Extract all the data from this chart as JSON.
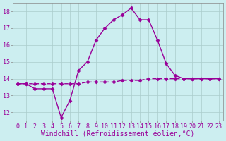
{
  "title": "",
  "xlabel": "Windchill (Refroidissement éolien,°C)",
  "ylabel": "",
  "background_color": "#cceef0",
  "grid_color": "#aacccc",
  "line_color": "#990099",
  "xlim": [
    -0.5,
    23.5
  ],
  "ylim": [
    11.5,
    18.5
  ],
  "yticks": [
    12,
    13,
    14,
    15,
    16,
    17,
    18
  ],
  "xticks": [
    0,
    1,
    2,
    3,
    4,
    5,
    6,
    7,
    8,
    9,
    10,
    11,
    12,
    13,
    14,
    15,
    16,
    17,
    18,
    19,
    20,
    21,
    22,
    23
  ],
  "x_curve1": [
    0,
    1,
    2,
    3,
    4,
    5,
    6,
    7,
    8,
    9,
    10,
    11,
    12,
    13,
    14,
    15,
    16,
    17,
    18,
    19,
    20,
    21,
    22,
    23
  ],
  "y_curve1": [
    13.7,
    13.7,
    13.4,
    13.4,
    13.4,
    11.7,
    12.7,
    14.5,
    15.0,
    16.3,
    17.0,
    17.5,
    17.8,
    18.2,
    17.5,
    17.5,
    16.3,
    14.9,
    14.2,
    14.0,
    14.0,
    14.0,
    14.0,
    14.0
  ],
  "x_curve2": [
    0,
    1,
    2,
    3,
    4,
    5,
    6,
    7,
    8,
    9,
    10,
    11,
    12,
    13,
    14,
    15,
    16,
    17,
    18,
    19,
    20,
    21,
    22,
    23
  ],
  "y_curve2": [
    13.7,
    13.7,
    13.7,
    13.7,
    13.7,
    13.7,
    13.7,
    13.7,
    13.8,
    13.8,
    13.8,
    13.8,
    13.9,
    13.9,
    13.9,
    14.0,
    14.0,
    14.0,
    14.0,
    14.0,
    14.0,
    14.0,
    14.0,
    14.0
  ],
  "marker": "D",
  "markersize": 2.5,
  "linewidth": 1.0,
  "tick_fontsize": 6.0,
  "xlabel_fontsize": 7.0,
  "tick_color": "#990099",
  "xlabel_color": "#990099",
  "spine_color": "#888888"
}
